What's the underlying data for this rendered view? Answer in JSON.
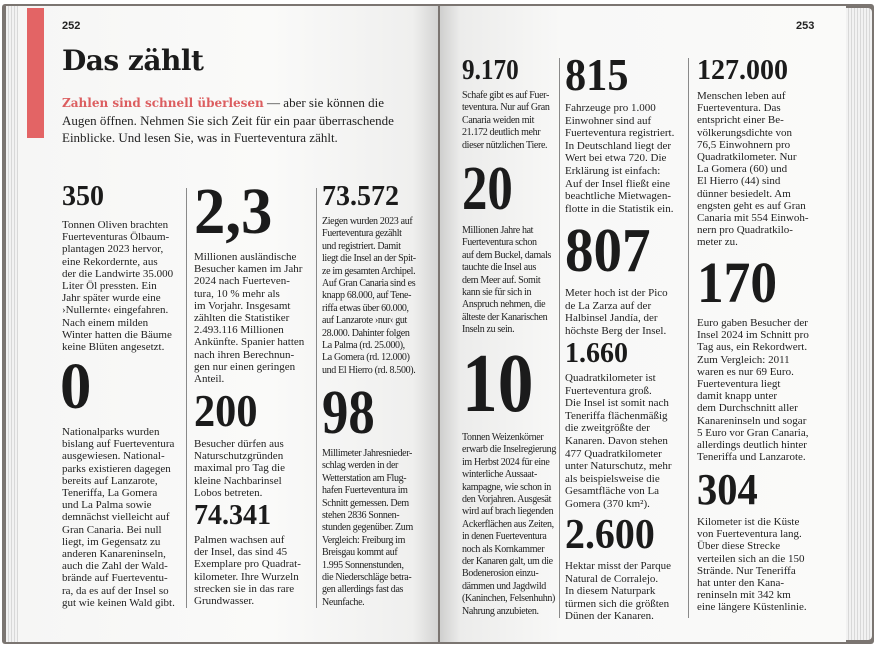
{
  "left_page": {
    "page_number": "252",
    "title": "Das zählt",
    "intro_highlight": "Zahlen sind schnell überlesen",
    "intro_text": " — aber sie können die\nAugen öffnen. Nehmen Sie sich Zeit für ein paar überraschende\nEinblicke. Und lesen Sie, was in Fuerteventura zählt.",
    "accent_color": "#e36465",
    "facts": [
      {
        "number": "350",
        "text": "Tonnen Oliven brachten\nFuerteventuras Ölbaum-\nplantagen 2023 hervor,\neine Rekordernte, aus\nder die Landwirte 35.000\nLiter Öl pressten. Ein\nJahr später wurde eine\n›Nullernte‹ eingefahren.\nNach einem milden\nWinter hatten die Bäume\nkeine Blüten angesetzt."
      },
      {
        "number": "0",
        "text": "Nationalparks wurden\nbislang auf Fuerteventura\nausgewiesen. National-\nparks existieren dagegen\nbereits auf Lanzarote,\nTeneriffa, La Gomera\nund La Palma sowie\ndemnächst vielleicht auf\nGran Canaria. Bei null\nliegt, im Gegensatz zu\nanderen Kanareninseln,\nauch die Zahl der Wald-\nbrände auf Fuerteventu-\nra, da es auf der Insel so\ngut wie keinen Wald gibt."
      },
      {
        "number": "2,3",
        "text": "Millionen ausländische\nBesucher kamen im Jahr\n2024 nach Fuerteven-\ntura, 10 % mehr als\nim Vorjahr. Insgesamt\nzählten die Statistiker\n2.493.116 Millionen\nAnkünfte. Spanier hatten\nnach ihren Berechnun-\ngen nur einen geringen\nAnteil."
      },
      {
        "number": "200",
        "text": "Besucher dürfen aus\nNaturschutzgründen\nmaximal pro Tag die\nkleine Nachbarinsel\nLobos betreten."
      },
      {
        "number": "74.341",
        "text": "Palmen wachsen auf\nder Insel, das sind 45\nExemplare pro Quadrat-\nkilometer. Ihre Wurzeln\nstrecken sie in das rare\nGrundwasser."
      },
      {
        "number": "73.572",
        "text": "Ziegen wurden 2023 auf\nFuerteventura gezählt\nund registriert. Damit\nliegt die Insel an der Spit-\nze im gesamten Archipel.\nAuf Gran Canaria sind es\nknapp 68.000, auf Tene-\nriffa etwas über 60.000,\nauf Lanzarote ›nur‹ gut\n28.000. Dahinter folgen\nLa Palma (rd. 25.000),\nLa Gomera (rd. 12.000)\nund El Hierro (rd. 8.500)."
      },
      {
        "number": "98",
        "text": "Millimeter Jahresnieder-\nschlag werden in der\nWetterstation am Flug-\nhafen Fuerteventura im\nSchnitt gemessen. Dem\nstehen 2836 Sonnen-\nstunden gegenüber. Zum\nVergleich: Freiburg im\nBreisgau kommt auf\n1.995 Sonnenstunden,\ndie Niederschläge betra-\ngen allerdings fast das\nNeunfache."
      }
    ]
  },
  "right_page": {
    "page_number": "253",
    "facts": [
      {
        "number": "9.170",
        "text": "Schafe gibt es auf Fuer-\nteventura. Nur auf Gran\nCanaria weiden mit\n21.172 deutlich mehr\ndieser nützlichen Tiere."
      },
      {
        "number": "20",
        "text": "Millionen Jahre hat\nFuerteventura schon\nauf dem Buckel, damals\ntauchte die Insel aus\ndem Meer auf. Somit\nkann sie für sich in\nAnspruch nehmen, die\nälteste der Kanarischen\nInseln zu sein."
      },
      {
        "number": "10",
        "text": "Tonnen Weizenkörner\nerwarb die Inselregierung\nim Herbst 2024 für eine\nwinterliche Aussaat-\nkampagne, wie schon in\nden Vorjahren. Ausgesät\nwird auf brach liegenden\nAckerflächen aus Zeiten,\nin denen Fuerteventura\nnoch als Kornkammer\nder Kanaren galt, um die\nBodenerosion einzu-\ndämmen und Jagdwild\n(Kaninchen, Felsenhuhn)\nNahrung anzubieten."
      },
      {
        "number": "815",
        "text": "Fahrzeuge pro 1.000\nEinwohner sind auf\nFuerteventura registriert.\nIn Deutschland liegt der\nWert bei etwa 720. Die\nErklärung ist einfach:\nAuf der Insel fließt eine\nbeachtliche Mietwagen-\nflotte in die Statistik ein."
      },
      {
        "number": "807",
        "text": "Meter hoch ist der Pico\nde La Zarza auf der\nHalbinsel Jandía, der\nhöchste Berg der Insel."
      },
      {
        "number": "1.660",
        "text": "Quadratkilometer ist\nFuerteventura groß.\nDie Insel ist somit nach\nTeneriffa flächenmäßig\ndie zweitgrößte der\nKanaren. Davon stehen\n477 Quadratkilometer\nunter Naturschutz, mehr\nals beispielsweise die\nGesamtfläche von La\nGomera (370 km²)."
      },
      {
        "number": "2.600",
        "text": "Hektar misst der Parque\nNatural de Corralejo.\nIn diesem Naturpark\ntürmen sich die größten\nDünen der Kanaren."
      },
      {
        "number": "127.000",
        "text": "Menschen leben auf\nFuerteventura. Das\nentspricht einer Be-\nvölkerungsdichte von\n76,5 Einwohnern pro\nQuadratkilometer. Nur\nLa Gomera (60) und\nEl Hierro (44) sind\ndünner besiedelt. Am\nengsten geht es auf Gran\nCanaria mit 554 Einwoh-\nnern pro Quadratkilo-\nmeter zu."
      },
      {
        "number": "170",
        "text": "Euro gaben Besucher der\nInsel 2024 im Schnitt pro\nTag aus, ein Rekordwert.\nZum Vergleich: 2011\nwaren es nur 69 Euro.\nFuerteventura liegt\ndamit knapp unter\ndem Durchschnitt aller\nKanareninseln und sogar\n5 Euro vor Gran Canaria,\nallerdings deutlich hinter\nTeneriffa und Lanzarote."
      },
      {
        "number": "304",
        "text": "Kilometer ist die Küste\nvon Fuerteventura lang.\nÜber diese Strecke\nverteilen sich an die 150\nStrände. Nur Teneriffa\nhat unter den Kana-\nreninseln mit 342 km\neine längere Küstenlinie."
      }
    ]
  }
}
